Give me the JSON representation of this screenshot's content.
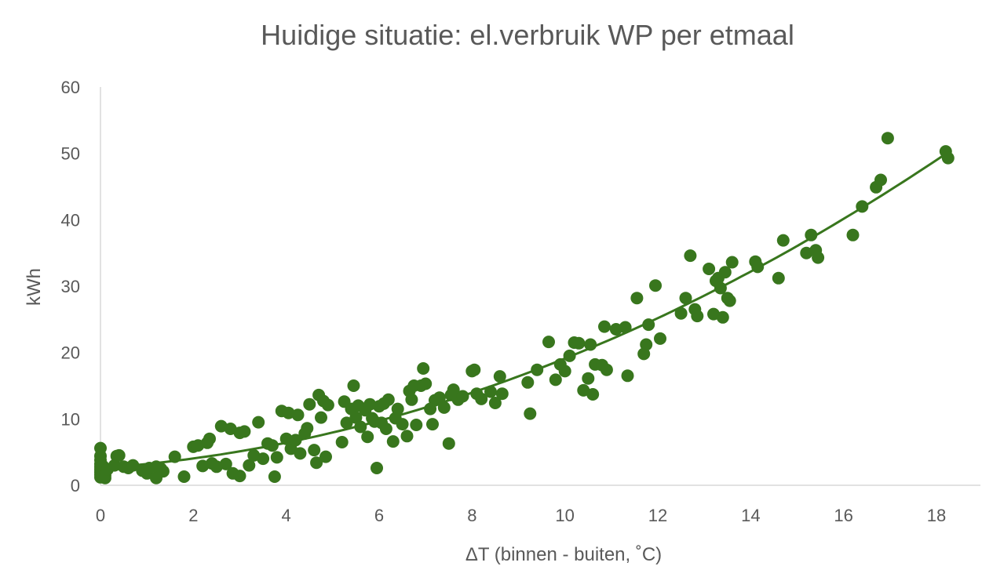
{
  "chart_data": {
    "type": "scatter",
    "title": "Huidige situatie: el.verbruik WP per etmaal",
    "xlabel": "ΔT (binnen - buiten, ˚C)",
    "ylabel": "kWh",
    "xlim": [
      0,
      18
    ],
    "ylim": [
      0,
      60
    ],
    "x_ticks": [
      "0",
      "2",
      "4",
      "6",
      "8",
      "10",
      "12",
      "14",
      "16",
      "18"
    ],
    "y_ticks": [
      "0",
      "10",
      "20",
      "30",
      "40",
      "50",
      "60"
    ],
    "grid": false,
    "legend": "none",
    "marker_color": "#38761d",
    "trendline": {
      "type": "polynomial",
      "color": "#38761d",
      "coefficients": [
        2.6,
        0.49,
        0.116
      ]
    },
    "series": [
      {
        "points": [
          [
            0,
            5.6
          ],
          [
            0,
            4.4
          ],
          [
            0,
            3.8
          ],
          [
            0,
            3.2
          ],
          [
            0,
            2.8
          ],
          [
            0,
            2.4
          ],
          [
            0,
            2.0
          ],
          [
            0,
            1.6
          ],
          [
            0,
            1.2
          ],
          [
            0.05,
            2.9
          ],
          [
            0.05,
            1.8
          ],
          [
            0.1,
            1.5
          ],
          [
            0.1,
            1.1
          ],
          [
            0.15,
            2.4
          ],
          [
            0.3,
            3.0
          ],
          [
            0.35,
            4.4
          ],
          [
            0.4,
            4.5
          ],
          [
            0.5,
            2.8
          ],
          [
            0.6,
            2.6
          ],
          [
            0.7,
            3.0
          ],
          [
            0.9,
            2.2
          ],
          [
            1.0,
            1.8
          ],
          [
            1.05,
            2.6
          ],
          [
            1.2,
            2.8
          ],
          [
            1.2,
            1.1
          ],
          [
            1.3,
            2.5
          ],
          [
            1.35,
            2.1
          ],
          [
            1.6,
            4.3
          ],
          [
            1.8,
            1.3
          ],
          [
            2.0,
            5.8
          ],
          [
            2.1,
            6.0
          ],
          [
            2.2,
            2.9
          ],
          [
            2.3,
            6.4
          ],
          [
            2.35,
            7.0
          ],
          [
            2.4,
            3.3
          ],
          [
            2.5,
            2.8
          ],
          [
            2.6,
            8.9
          ],
          [
            2.7,
            3.2
          ],
          [
            2.8,
            8.5
          ],
          [
            2.85,
            1.8
          ],
          [
            3.0,
            7.9
          ],
          [
            3.0,
            1.4
          ],
          [
            3.1,
            8.1
          ],
          [
            3.2,
            3.0
          ],
          [
            3.3,
            4.5
          ],
          [
            3.4,
            9.5
          ],
          [
            3.5,
            4.0
          ],
          [
            3.6,
            6.3
          ],
          [
            3.7,
            6.0
          ],
          [
            3.75,
            1.3
          ],
          [
            3.8,
            4.2
          ],
          [
            3.9,
            11.2
          ],
          [
            4.0,
            7.0
          ],
          [
            4.05,
            10.9
          ],
          [
            4.1,
            5.5
          ],
          [
            4.2,
            6.8
          ],
          [
            4.25,
            10.6
          ],
          [
            4.3,
            4.8
          ],
          [
            4.4,
            7.8
          ],
          [
            4.45,
            8.6
          ],
          [
            4.5,
            12.2
          ],
          [
            4.6,
            5.3
          ],
          [
            4.65,
            3.4
          ],
          [
            4.7,
            13.6
          ],
          [
            4.75,
            10.2
          ],
          [
            4.8,
            12.7
          ],
          [
            4.85,
            4.3
          ],
          [
            4.9,
            12.1
          ],
          [
            5.2,
            6.5
          ],
          [
            5.25,
            12.6
          ],
          [
            5.3,
            9.4
          ],
          [
            5.4,
            11.5
          ],
          [
            5.45,
            15.0
          ],
          [
            5.5,
            10.2
          ],
          [
            5.55,
            12.0
          ],
          [
            5.6,
            8.8
          ],
          [
            5.7,
            11.3
          ],
          [
            5.75,
            7.3
          ],
          [
            5.8,
            12.2
          ],
          [
            5.85,
            10.1
          ],
          [
            5.9,
            9.6
          ],
          [
            5.95,
            2.6
          ],
          [
            6.0,
            11.9
          ],
          [
            6.05,
            9.4
          ],
          [
            6.1,
            12.3
          ],
          [
            6.15,
            8.5
          ],
          [
            6.2,
            12.9
          ],
          [
            6.3,
            6.6
          ],
          [
            6.35,
            10.1
          ],
          [
            6.4,
            11.5
          ],
          [
            6.5,
            9.2
          ],
          [
            6.6,
            7.4
          ],
          [
            6.65,
            14.2
          ],
          [
            6.7,
            12.9
          ],
          [
            6.75,
            15.0
          ],
          [
            6.8,
            9.1
          ],
          [
            6.9,
            15.0
          ],
          [
            6.95,
            17.6
          ],
          [
            7.0,
            15.3
          ],
          [
            7.1,
            11.5
          ],
          [
            7.15,
            9.2
          ],
          [
            7.2,
            12.8
          ],
          [
            7.3,
            13.2
          ],
          [
            7.4,
            11.7
          ],
          [
            7.5,
            6.3
          ],
          [
            7.55,
            13.6
          ],
          [
            7.6,
            14.4
          ],
          [
            7.7,
            12.9
          ],
          [
            7.8,
            13.4
          ],
          [
            8.0,
            17.2
          ],
          [
            8.05,
            17.4
          ],
          [
            8.1,
            13.8
          ],
          [
            8.2,
            13.0
          ],
          [
            8.4,
            14.1
          ],
          [
            8.5,
            12.4
          ],
          [
            8.6,
            16.4
          ],
          [
            8.65,
            13.8
          ],
          [
            9.2,
            15.5
          ],
          [
            9.25,
            10.8
          ],
          [
            9.4,
            17.4
          ],
          [
            9.65,
            21.6
          ],
          [
            9.8,
            15.9
          ],
          [
            9.9,
            18.2
          ],
          [
            10.0,
            17.2
          ],
          [
            10.1,
            19.5
          ],
          [
            10.2,
            21.5
          ],
          [
            10.3,
            21.4
          ],
          [
            10.4,
            14.3
          ],
          [
            10.5,
            16.1
          ],
          [
            10.55,
            21.2
          ],
          [
            10.6,
            13.7
          ],
          [
            10.65,
            18.2
          ],
          [
            10.8,
            18.1
          ],
          [
            10.85,
            23.9
          ],
          [
            10.9,
            17.4
          ],
          [
            11.1,
            23.5
          ],
          [
            11.3,
            23.8
          ],
          [
            11.35,
            16.5
          ],
          [
            11.55,
            28.2
          ],
          [
            11.7,
            19.8
          ],
          [
            11.75,
            21.2
          ],
          [
            11.8,
            24.2
          ],
          [
            11.95,
            30.1
          ],
          [
            12.05,
            22.1
          ],
          [
            12.5,
            25.9
          ],
          [
            12.6,
            28.2
          ],
          [
            12.7,
            34.6
          ],
          [
            12.8,
            26.5
          ],
          [
            12.85,
            25.5
          ],
          [
            13.1,
            32.6
          ],
          [
            13.2,
            25.8
          ],
          [
            13.25,
            30.8
          ],
          [
            13.3,
            31.2
          ],
          [
            13.35,
            29.7
          ],
          [
            13.4,
            25.3
          ],
          [
            13.45,
            32.1
          ],
          [
            13.5,
            28.2
          ],
          [
            13.55,
            27.8
          ],
          [
            13.6,
            33.6
          ],
          [
            14.1,
            33.7
          ],
          [
            14.15,
            32.9
          ],
          [
            14.6,
            31.2
          ],
          [
            14.7,
            36.9
          ],
          [
            15.2,
            35.0
          ],
          [
            15.3,
            37.7
          ],
          [
            15.4,
            35.4
          ],
          [
            15.45,
            34.3
          ],
          [
            16.2,
            37.7
          ],
          [
            16.4,
            42.0
          ],
          [
            16.7,
            44.9
          ],
          [
            16.8,
            46.0
          ],
          [
            16.95,
            52.3
          ],
          [
            18.2,
            50.3
          ],
          [
            18.25,
            49.3
          ]
        ]
      }
    ]
  }
}
